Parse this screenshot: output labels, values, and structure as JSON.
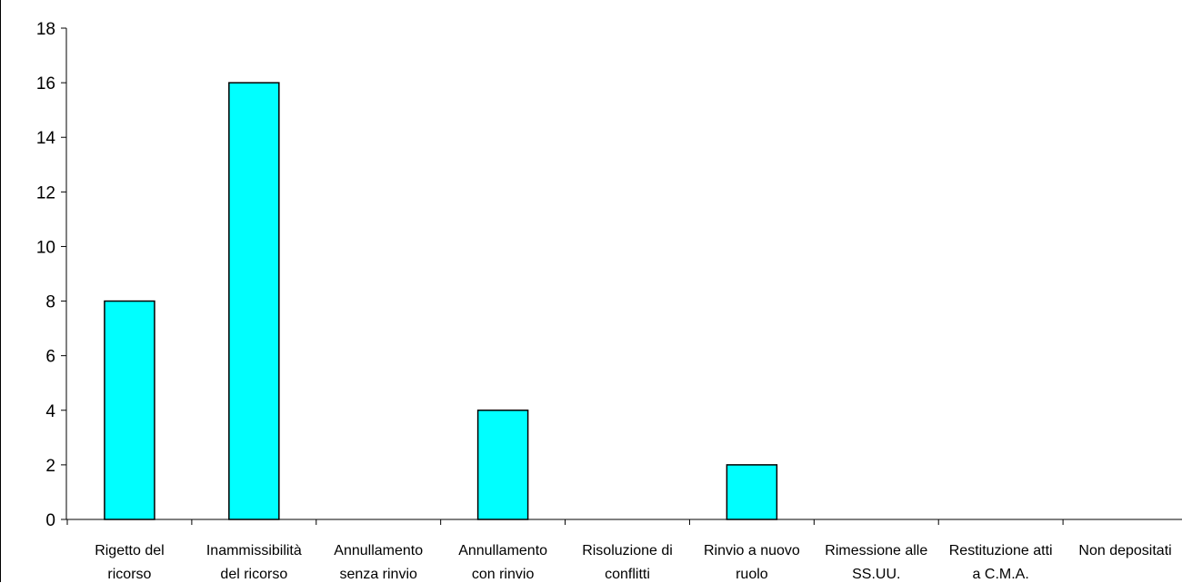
{
  "chart_data": {
    "type": "bar",
    "title": "",
    "xlabel": "",
    "ylabel": "",
    "ylim": [
      0,
      18
    ],
    "yticks": [
      0,
      2,
      4,
      6,
      8,
      10,
      12,
      14,
      16,
      18
    ],
    "grid": false,
    "legend": "none",
    "bar_color": "#00ffff",
    "bar_edge_color": "#000000",
    "categories": [
      [
        "Rigetto del",
        "ricorso"
      ],
      [
        "Inammissibilità",
        "del ricorso"
      ],
      [
        "Annullamento",
        "senza rinvio"
      ],
      [
        "Annullamento",
        "con rinvio"
      ],
      [
        "Risoluzione di",
        "conflitti"
      ],
      [
        "Rinvio a nuovo",
        "ruolo"
      ],
      [
        "Rimessione alle",
        "SS.UU."
      ],
      [
        "Restituzione atti",
        "a C.M.A."
      ],
      [
        "Non depositati"
      ]
    ],
    "values": [
      8,
      16,
      0,
      4,
      0,
      2,
      0,
      0,
      0
    ]
  }
}
